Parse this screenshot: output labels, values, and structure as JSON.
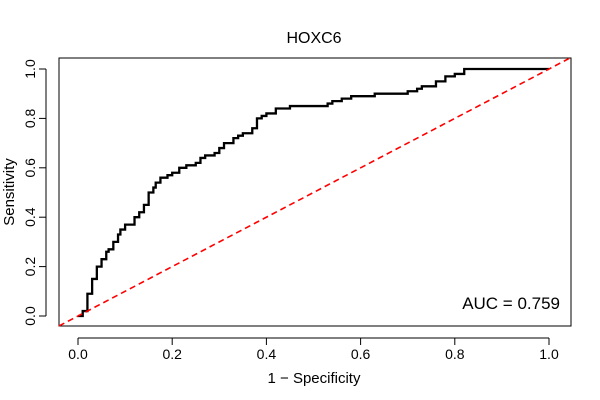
{
  "chart_data": {
    "type": "line",
    "title": "HOXC6",
    "xlabel": "1 − Specificity",
    "ylabel": "Sensitivity",
    "xlim": [
      0,
      1
    ],
    "ylim": [
      0,
      1
    ],
    "x_ticks": [
      "0.0",
      "0.2",
      "0.4",
      "0.6",
      "0.8",
      "1.0"
    ],
    "y_ticks": [
      "0.0",
      "0.2",
      "0.4",
      "0.6",
      "0.8",
      "1.0"
    ],
    "grid": false,
    "annotation": "AUC = 0.759",
    "series": [
      {
        "color": "#000000",
        "style": "solid-step",
        "x": [
          0,
          0.01,
          0.01,
          0.02,
          0.02,
          0.03,
          0.03,
          0.04,
          0.05,
          0.06,
          0.065,
          0.075,
          0.085,
          0.09,
          0.1,
          0.12,
          0.13,
          0.14,
          0.15,
          0.16,
          0.165,
          0.175,
          0.19,
          0.2,
          0.215,
          0.23,
          0.25,
          0.26,
          0.27,
          0.29,
          0.3,
          0.31,
          0.33,
          0.34,
          0.35,
          0.37,
          0.38,
          0.39,
          0.4,
          0.42,
          0.45,
          0.47,
          0.51,
          0.53,
          0.54,
          0.56,
          0.58,
          0.61,
          0.63,
          0.67,
          0.7,
          0.72,
          0.73,
          0.76,
          0.78,
          0.8,
          0.82,
          0.85,
          1.0
        ],
        "y": [
          0,
          0.01,
          0.02,
          0.05,
          0.09,
          0.12,
          0.15,
          0.2,
          0.23,
          0.26,
          0.27,
          0.3,
          0.33,
          0.35,
          0.37,
          0.4,
          0.42,
          0.45,
          0.5,
          0.52,
          0.54,
          0.56,
          0.57,
          0.58,
          0.6,
          0.61,
          0.62,
          0.64,
          0.65,
          0.66,
          0.68,
          0.7,
          0.72,
          0.73,
          0.74,
          0.76,
          0.8,
          0.81,
          0.82,
          0.84,
          0.85,
          0.85,
          0.85,
          0.86,
          0.87,
          0.88,
          0.89,
          0.89,
          0.9,
          0.9,
          0.91,
          0.92,
          0.93,
          0.95,
          0.97,
          0.98,
          1.0,
          1.0,
          1.0
        ]
      },
      {
        "color": "#ff0000",
        "style": "dashed",
        "x": [
          0,
          1
        ],
        "y": [
          0,
          1
        ]
      }
    ]
  }
}
